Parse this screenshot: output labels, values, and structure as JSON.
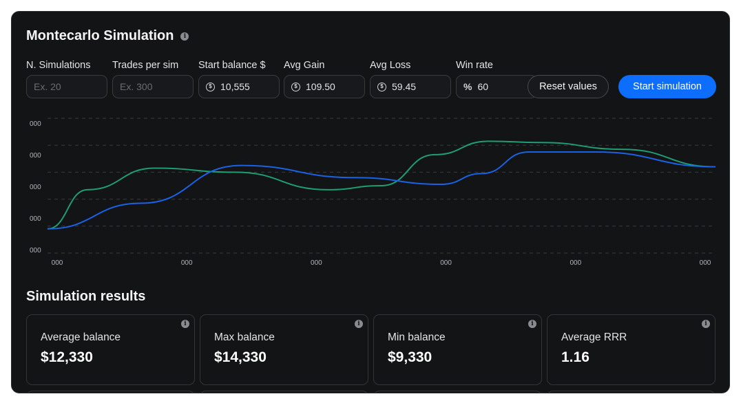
{
  "header": {
    "title": "Montecarlo Simulation",
    "info_icon": "info-icon"
  },
  "inputs": [
    {
      "label": "N. Simulations",
      "value": "",
      "placeholder": "Ex. 20",
      "icon": ""
    },
    {
      "label": "Trades per sim",
      "value": "",
      "placeholder": "Ex. 300",
      "icon": ""
    },
    {
      "label": "Start balance $",
      "value": "10,555",
      "placeholder": "",
      "icon": "dollar-coin-icon"
    },
    {
      "label": "Avg Gain",
      "value": "109.50",
      "placeholder": "",
      "icon": "dollar-coin-icon"
    },
    {
      "label": "Avg Loss",
      "value": "59.45",
      "placeholder": "",
      "icon": "dollar-coin-icon"
    },
    {
      "label": "Win rate",
      "value": "60",
      "placeholder": "",
      "icon": "percent-icon"
    }
  ],
  "buttons": {
    "reset": "Reset values",
    "start": "Start simulation"
  },
  "chart_data": {
    "type": "line",
    "y_tick_labels": [
      "000",
      "000",
      "000",
      "000",
      "000"
    ],
    "x_tick_labels": [
      "000",
      "000",
      "000",
      "000",
      "000",
      "000"
    ],
    "grid": "horizontal-dashed",
    "colors": {
      "green": "#1f9e72",
      "blue": "#1a62e6"
    },
    "series": [
      {
        "color": "#1f9e72",
        "x": [
          0,
          0.06,
          0.16,
          0.28,
          0.42,
          0.5,
          0.58,
          0.66,
          0.74,
          0.86,
          1.0
        ],
        "y": [
          0.18,
          0.47,
          0.63,
          0.6,
          0.47,
          0.5,
          0.73,
          0.83,
          0.82,
          0.77,
          0.64
        ]
      },
      {
        "color": "#1a62e6",
        "x": [
          0,
          0.14,
          0.29,
          0.46,
          0.59,
          0.65,
          0.72,
          0.82,
          1.0
        ],
        "y": [
          0.18,
          0.37,
          0.65,
          0.56,
          0.51,
          0.59,
          0.75,
          0.75,
          0.64
        ]
      }
    ]
  },
  "results": {
    "title": "Simulation results",
    "cards": [
      {
        "label": "Average balance",
        "value": "$12,330"
      },
      {
        "label": "Max balance",
        "value": "$14,330"
      },
      {
        "label": "Min balance",
        "value": "$9,330"
      },
      {
        "label": "Average RRR",
        "value": "1.16"
      }
    ]
  }
}
